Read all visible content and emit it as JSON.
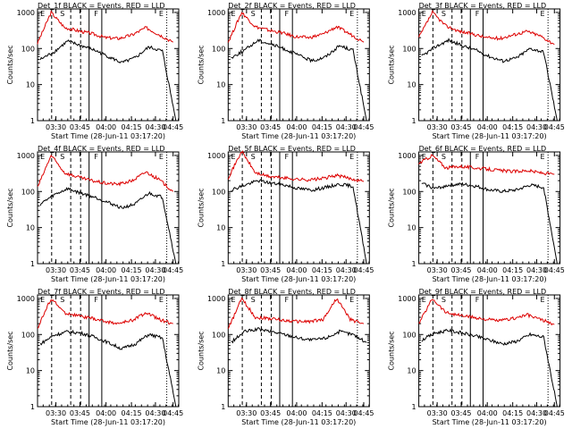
{
  "chart_data": [
    {
      "type": "line",
      "title": "Det_1f BLACK = Events, RED = LLD",
      "ylabel": "Counts/sec",
      "xlabel": "Start Time (28-Jun-11 03:17:20)",
      "ylim": [
        1,
        1000
      ],
      "yscale": "log",
      "yticks": [
        "1",
        "10",
        "100",
        "1000"
      ],
      "xticks": [
        "03:30",
        "03:45",
        "04:00",
        "04:15",
        "04:30",
        "04:45"
      ],
      "markers": [
        "E",
        "S",
        "F",
        "E"
      ],
      "series": [
        {
          "color": "#dd0000",
          "values": [
            140,
            1000,
            380,
            310,
            260,
            200,
            190,
            240,
            380,
            240,
            150
          ]
        },
        {
          "color": "#000000",
          "values": [
            50,
            80,
            160,
            120,
            90,
            60,
            40,
            55,
            110,
            85,
            1
          ]
        }
      ]
    },
    {
      "type": "line",
      "title": "Det_2f BLACK = Events, RED = LLD",
      "ylabel": "Counts/sec",
      "xlabel": "Start Time (28-Jun-11 03:17:20)",
      "ylim": [
        1,
        1000
      ],
      "yscale": "log",
      "yticks": [
        "1",
        "10",
        "100",
        "1000"
      ],
      "xticks": [
        "03:30",
        "03:45",
        "04:00",
        "04:15",
        "04:30",
        "04:45"
      ],
      "markers": [
        "E",
        "S",
        "F",
        "E"
      ],
      "series": [
        {
          "color": "#dd0000",
          "values": [
            150,
            1000,
            400,
            320,
            270,
            210,
            200,
            250,
            400,
            250,
            150
          ]
        },
        {
          "color": "#000000",
          "values": [
            55,
            90,
            170,
            130,
            95,
            65,
            45,
            60,
            120,
            90,
            1
          ]
        }
      ]
    },
    {
      "type": "line",
      "title": "Det_3f BLACK = Events, RED = LLD",
      "ylabel": "Counts/sec",
      "xlabel": "Start Time (28-Jun-11 03:17:20)",
      "ylim": [
        1,
        1000
      ],
      "yscale": "log",
      "yticks": [
        "1",
        "10",
        "100",
        "1000"
      ],
      "xticks": [
        "03:30",
        "03:45",
        "04:00",
        "04:15",
        "04:30",
        "04:45"
      ],
      "markers": [
        "E",
        "S",
        "F",
        "E"
      ],
      "series": [
        {
          "color": "#dd0000",
          "values": [
            200,
            1000,
            420,
            300,
            250,
            200,
            190,
            240,
            300,
            220,
            130
          ]
        },
        {
          "color": "#000000",
          "values": [
            60,
            110,
            170,
            120,
            90,
            60,
            45,
            55,
            100,
            80,
            1
          ]
        }
      ]
    },
    {
      "type": "line",
      "title": "Det_4f BLACK = Events, RED = LLD",
      "ylabel": "Counts/sec",
      "xlabel": "Start Time (28-Jun-11 03:17:20)",
      "ylim": [
        1,
        1000
      ],
      "yscale": "log",
      "yticks": [
        "1",
        "10",
        "100",
        "1000"
      ],
      "xticks": [
        "03:30",
        "03:45",
        "04:00",
        "04:15",
        "04:30",
        "04:45"
      ],
      "markers": [
        "E",
        "S",
        "F",
        "E"
      ],
      "series": [
        {
          "color": "#dd0000",
          "values": [
            130,
            1000,
            330,
            250,
            200,
            170,
            160,
            200,
            350,
            210,
            100
          ]
        },
        {
          "color": "#000000",
          "values": [
            45,
            80,
            120,
            90,
            70,
            50,
            35,
            45,
            90,
            70,
            1
          ]
        }
      ]
    },
    {
      "type": "line",
      "title": "Det_5f BLACK = Events, RED = LLD",
      "ylabel": "Counts/sec",
      "xlabel": "Start Time (28-Jun-11 03:17:20)",
      "ylim": [
        1,
        1000
      ],
      "yscale": "log",
      "yticks": [
        "1",
        "10",
        "100",
        "1000"
      ],
      "xticks": [
        "03:30",
        "03:45",
        "04:00",
        "04:15",
        "04:30",
        "04:45"
      ],
      "markers": [
        "E",
        "S",
        "F",
        "E"
      ],
      "series": [
        {
          "color": "#dd0000",
          "values": [
            240,
            1300,
            330,
            260,
            240,
            220,
            210,
            230,
            280,
            230,
            190
          ]
        },
        {
          "color": "#000000",
          "values": [
            110,
            150,
            200,
            170,
            150,
            120,
            110,
            130,
            160,
            140,
            1
          ]
        }
      ]
    },
    {
      "type": "line",
      "title": "Det_6f BLACK = Events, RED = LLD",
      "ylabel": "Counts/sec",
      "xlabel": "Start Time (28-Jun-11 03:17:20)",
      "ylim": [
        1,
        1000
      ],
      "yscale": "log",
      "yticks": [
        "1",
        "10",
        "100",
        "1000"
      ],
      "xticks": [
        "03:30",
        "03:45",
        "04:00",
        "04:15",
        "04:30",
        "04:45"
      ],
      "markers": [
        "E",
        "S",
        "F",
        "E"
      ],
      "series": [
        {
          "color": "#dd0000",
          "values": [
            600,
            1000,
            450,
            500,
            460,
            420,
            380,
            360,
            380,
            330,
            300
          ]
        },
        {
          "color": "#000000",
          "values": [
            170,
            120,
            150,
            160,
            140,
            110,
            100,
            110,
            150,
            130,
            1
          ]
        }
      ]
    },
    {
      "type": "line",
      "title": "Det_7f BLACK = Events, RED = LLD",
      "ylabel": "Counts/sec",
      "xlabel": "Start Time (28-Jun-11 03:17:20)",
      "ylim": [
        1,
        1000
      ],
      "yscale": "log",
      "yticks": [
        "1",
        "10",
        "100",
        "1000"
      ],
      "xticks": [
        "03:30",
        "03:45",
        "04:00",
        "04:15",
        "04:30",
        "04:45"
      ],
      "markers": [
        "E",
        "S",
        "F",
        "E"
      ],
      "series": [
        {
          "color": "#dd0000",
          "values": [
            150,
            1000,
            400,
            330,
            280,
            230,
            200,
            250,
            400,
            260,
            200
          ]
        },
        {
          "color": "#000000",
          "values": [
            55,
            95,
            120,
            110,
            85,
            60,
            40,
            55,
            100,
            80,
            1
          ]
        }
      ]
    },
    {
      "type": "line",
      "title": "Det_8f BLACK = Events, RED = LLD",
      "ylabel": "Counts/sec",
      "xlabel": "Start Time (28-Jun-11 03:17:20)",
      "ylim": [
        1,
        1000
      ],
      "yscale": "log",
      "yticks": [
        "1",
        "10",
        "100",
        "1000"
      ],
      "xticks": [
        "03:30",
        "03:45",
        "04:00",
        "04:15",
        "04:30",
        "04:45"
      ],
      "markers": [
        "E",
        "S",
        "F",
        "E"
      ],
      "series": [
        {
          "color": "#dd0000",
          "values": [
            140,
            1000,
            300,
            280,
            250,
            230,
            230,
            260,
            1000,
            260,
            200
          ]
        },
        {
          "color": "#000000",
          "values": [
            60,
            120,
            140,
            120,
            100,
            80,
            70,
            80,
            120,
            100,
            60
          ]
        }
      ]
    },
    {
      "type": "line",
      "title": "Det_9f BLACK = Events, RED = LLD",
      "ylabel": "Counts/sec",
      "xlabel": "Start Time (28-Jun-11 03:17:20)",
      "ylim": [
        1,
        1000
      ],
      "yscale": "log",
      "yticks": [
        "1",
        "10",
        "100",
        "1000"
      ],
      "xticks": [
        "03:30",
        "03:45",
        "04:00",
        "04:15",
        "04:30",
        "04:45"
      ],
      "markers": [
        "E",
        "S",
        "F",
        "E"
      ],
      "series": [
        {
          "color": "#dd0000",
          "values": [
            200,
            1000,
            410,
            340,
            300,
            260,
            240,
            280,
            350,
            260,
            190
          ]
        },
        {
          "color": "#000000",
          "values": [
            70,
            110,
            130,
            110,
            90,
            70,
            55,
            65,
            100,
            85,
            1
          ]
        }
      ]
    }
  ]
}
